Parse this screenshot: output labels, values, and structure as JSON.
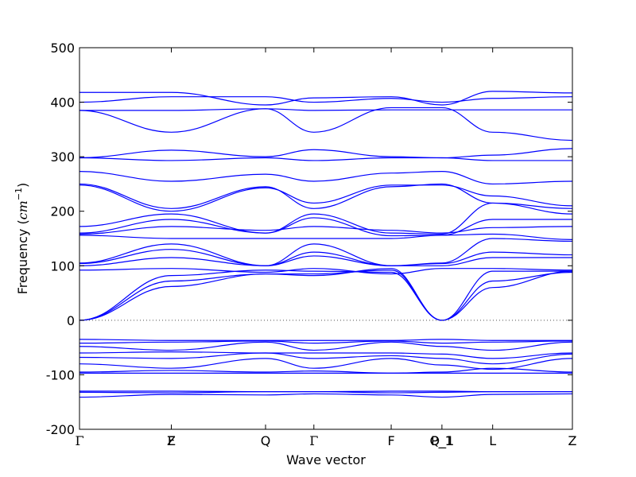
{
  "chart_data": {
    "type": "line",
    "title": "",
    "xlabel": "Wave vector",
    "ylabel": "Frequency ($cm^{-1}$)",
    "ylim": [
      -200,
      500
    ],
    "yticks": [
      500,
      400,
      300,
      200,
      100,
      0,
      -100,
      -200
    ],
    "grid": false,
    "legend": "none",
    "line_color": "#0000ff",
    "zero_line": {
      "y": 0,
      "style": "dotted",
      "color": "#4d4d4d"
    },
    "x_range": [
      0,
      10.2
    ],
    "kpoints": [
      {
        "x": 0.0,
        "label": "Γ"
      },
      {
        "x": 1.9,
        "label": "F"
      },
      {
        "x": 1.9,
        "label": "Z"
      },
      {
        "x": 3.85,
        "label": "Q"
      },
      {
        "x": 4.85,
        "label": "Γ"
      },
      {
        "x": 6.45,
        "label": "F"
      },
      {
        "x": 7.5,
        "label": "P_1"
      },
      {
        "x": 7.5,
        "label": "Q_1"
      },
      {
        "x": 8.55,
        "label": "L"
      },
      {
        "x": 10.2,
        "label": "Z"
      }
    ],
    "series": [
      {
        "y": [
          418,
          418,
          395,
          408,
          410,
          395,
          420,
          417,
          395,
          417,
          400
        ]
      },
      {
        "y": [
          400,
          410,
          410,
          400,
          407,
          400,
          407,
          410,
          410,
          412,
          405
        ]
      },
      {
        "y": [
          385,
          385,
          388,
          385,
          386,
          386,
          386,
          386,
          386,
          386,
          385
        ]
      },
      {
        "y": [
          385,
          345,
          388,
          345,
          390,
          390,
          345,
          330,
          388,
          340,
          388
        ]
      },
      {
        "y": [
          298,
          312,
          300,
          313,
          300,
          298,
          303,
          315,
          300,
          312,
          300
        ]
      },
      {
        "y": [
          298,
          293,
          298,
          293,
          298,
          298,
          293,
          293,
          298,
          292,
          298
        ]
      },
      {
        "y": [
          273,
          255,
          268,
          255,
          270,
          273,
          250,
          255,
          268,
          255,
          270
        ]
      },
      {
        "y": [
          250,
          205,
          245,
          205,
          245,
          250,
          215,
          205,
          245,
          200,
          245
        ]
      },
      {
        "y": [
          248,
          200,
          243,
          215,
          248,
          248,
          228,
          210,
          243,
          230,
          243
        ]
      },
      {
        "y": [
          172,
          195,
          160,
          195,
          160,
          158,
          215,
          195,
          160,
          215,
          160
        ]
      },
      {
        "y": [
          160,
          185,
          160,
          188,
          155,
          156,
          185,
          185,
          158,
          190,
          158
        ]
      },
      {
        "y": [
          158,
          172,
          165,
          172,
          165,
          160,
          170,
          172,
          165,
          175,
          160
        ]
      },
      {
        "y": [
          156,
          150,
          150,
          150,
          150,
          156,
          158,
          148,
          148,
          150,
          155
        ]
      },
      {
        "y": [
          105,
          140,
          100,
          140,
          100,
          105,
          150,
          145,
          100,
          140,
          100
        ]
      },
      {
        "y": [
          104,
          130,
          100,
          125,
          100,
          104,
          125,
          120,
          100,
          125,
          97
        ]
      },
      {
        "y": [
          100,
          115,
          100,
          118,
          100,
          100,
          115,
          115,
          100,
          118,
          97
        ]
      },
      {
        "y": [
          92,
          95,
          88,
          95,
          85,
          95,
          95,
          92,
          85,
          93,
          85
        ]
      },
      {
        "y": [
          0,
          82,
          92,
          90,
          88,
          0,
          90,
          90,
          88,
          90,
          88
        ]
      },
      {
        "y": [
          0,
          72,
          85,
          85,
          92,
          0,
          72,
          88,
          93,
          88,
          93
        ]
      },
      {
        "y": [
          0,
          62,
          85,
          82,
          95,
          0,
          60,
          90,
          95,
          96,
          95
        ]
      },
      {
        "y": [
          -35,
          -37,
          -37,
          -37,
          -37,
          -35,
          -37,
          -37,
          -37,
          -37,
          -35
        ]
      },
      {
        "y": [
          -42,
          -40,
          -38,
          -42,
          -38,
          -42,
          -40,
          -38,
          -42,
          -38,
          -42
        ]
      },
      {
        "y": [
          -48,
          -55,
          -40,
          -55,
          -40,
          -48,
          -55,
          -40,
          -55,
          -45,
          -48
        ]
      },
      {
        "y": [
          -60,
          -58,
          -60,
          -60,
          -60,
          -62,
          -70,
          -60,
          -65,
          -60,
          -60
        ]
      },
      {
        "y": [
          -68,
          -70,
          -60,
          -70,
          -65,
          -70,
          -80,
          -62,
          -80,
          -60,
          -70
        ]
      },
      {
        "y": [
          -80,
          -88,
          -70,
          -88,
          -70,
          -82,
          -90,
          -70,
          -90,
          -70,
          -85
        ]
      },
      {
        "y": [
          -95,
          -92,
          -95,
          -93,
          -97,
          -95,
          -88,
          -95,
          -92,
          -95,
          -96
        ]
      },
      {
        "y": [
          -97,
          -97,
          -97,
          -97,
          -97,
          -97,
          -97,
          -97,
          -97,
          -97,
          -97
        ]
      },
      {
        "y": [
          -130,
          -130,
          -131,
          -131,
          -130,
          -130,
          -131,
          -131,
          -130,
          -131,
          -130
        ]
      },
      {
        "y": [
          -132,
          -133,
          -131,
          -131,
          -133,
          -132,
          -131,
          -131,
          -133,
          -131,
          -132
        ]
      },
      {
        "y": [
          -141,
          -136,
          -137,
          -135,
          -137,
          -141,
          -136,
          -135,
          -138,
          -137,
          -139
        ]
      }
    ]
  }
}
